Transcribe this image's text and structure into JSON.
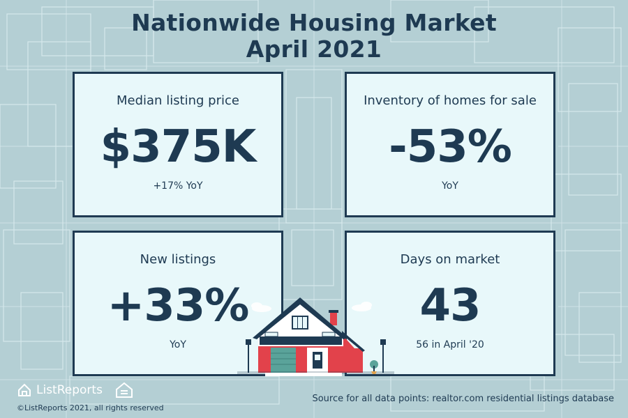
{
  "header": {
    "title_line1": "Nationwide Housing Market",
    "title_line2": "April 2021"
  },
  "cards": {
    "price": {
      "label": "Median listing price",
      "value": "$375K",
      "sub": "+17% YoY"
    },
    "inventory": {
      "label": "Inventory of homes for sale",
      "value": "-53%",
      "sub": "YoY"
    },
    "listings": {
      "label": "New listings",
      "value": "+33%",
      "sub": "YoY"
    },
    "days": {
      "label": "Days on market",
      "value": "43",
      "sub": "56 in April '20"
    }
  },
  "footer": {
    "brand": "ListReports",
    "copyright": "©ListReports 2021, all rights reserved",
    "source": "Source for all data points: realtor.com residential listings database"
  },
  "colors": {
    "background": "#b4cfd4",
    "card": "#e8f8fa",
    "ink": "#1e3a52",
    "house_red": "#e2424b",
    "house_teal": "#5aa39a"
  },
  "icons": [
    "listreports-logo-icon",
    "equal-housing-opportunity-icon",
    "house-illustration"
  ]
}
